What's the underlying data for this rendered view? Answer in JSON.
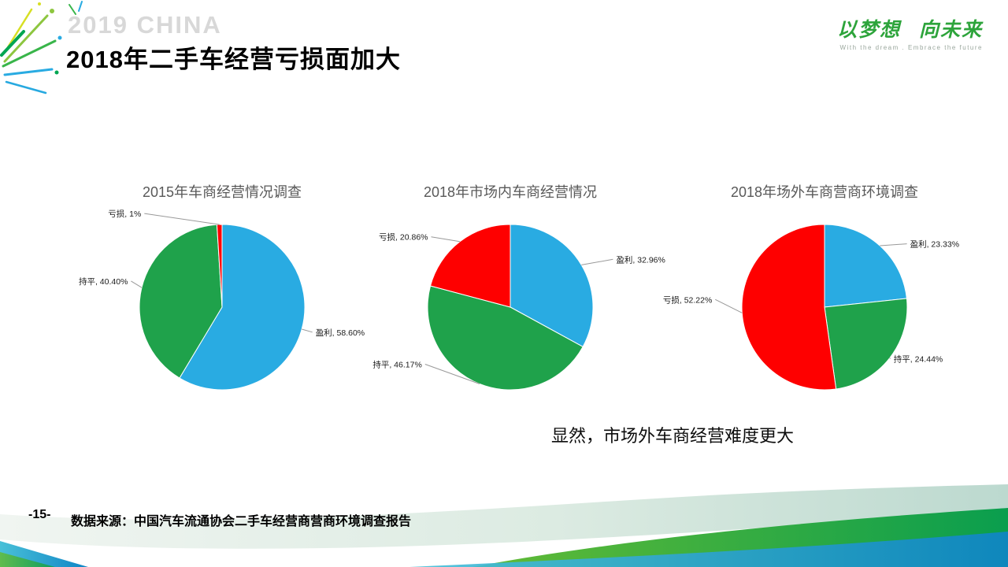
{
  "slide": {
    "watermark": "2019 CHINA",
    "title": "2018年二手车经营亏损面加大",
    "logo_main": "以梦想 向未来",
    "logo_sub": "With the dream . Embrace the future",
    "conclusion": "显然，市场外车商经营难度更大",
    "page_number": "-15-",
    "source": "数据来源：中国汽车流通协会二手车经营商营商环境调查报告"
  },
  "colors": {
    "profit": "#29abe2",
    "flat": "#1fa24b",
    "loss": "#fe0000",
    "leader_line": "#999999"
  },
  "chart_data": [
    {
      "type": "pie",
      "title": "2015年车商经营情况调查",
      "start_angle": 0,
      "direction": "clockwise",
      "slices": [
        {
          "label": "盈利",
          "value": 58.6,
          "display": "盈利, 58.60%",
          "color_key": "profit"
        },
        {
          "label": "持平",
          "value": 40.4,
          "display": "持平, 40.40%",
          "color_key": "flat"
        },
        {
          "label": "亏损",
          "value": 1.0,
          "display": "亏损, 1%",
          "color_key": "loss"
        }
      ]
    },
    {
      "type": "pie",
      "title": "2018年市场内车商经营情况",
      "start_angle": 0,
      "direction": "clockwise",
      "slices": [
        {
          "label": "盈利",
          "value": 32.96,
          "display": "盈利, 32.96%",
          "color_key": "profit"
        },
        {
          "label": "持平",
          "value": 46.17,
          "display": "持平, 46.17%",
          "color_key": "flat"
        },
        {
          "label": "亏损",
          "value": 20.86,
          "display": "亏损, 20.86%",
          "color_key": "loss"
        }
      ]
    },
    {
      "type": "pie",
      "title": "2018年场外车商营商环境调查",
      "start_angle": 0,
      "direction": "clockwise",
      "slices": [
        {
          "label": "盈利",
          "value": 23.33,
          "display": "盈利, 23.33%",
          "color_key": "profit"
        },
        {
          "label": "持平",
          "value": 24.44,
          "display": "持平, 24.44%",
          "color_key": "flat"
        },
        {
          "label": "亏损",
          "value": 52.22,
          "display": "亏损, 52.22%",
          "color_key": "loss"
        }
      ]
    }
  ]
}
